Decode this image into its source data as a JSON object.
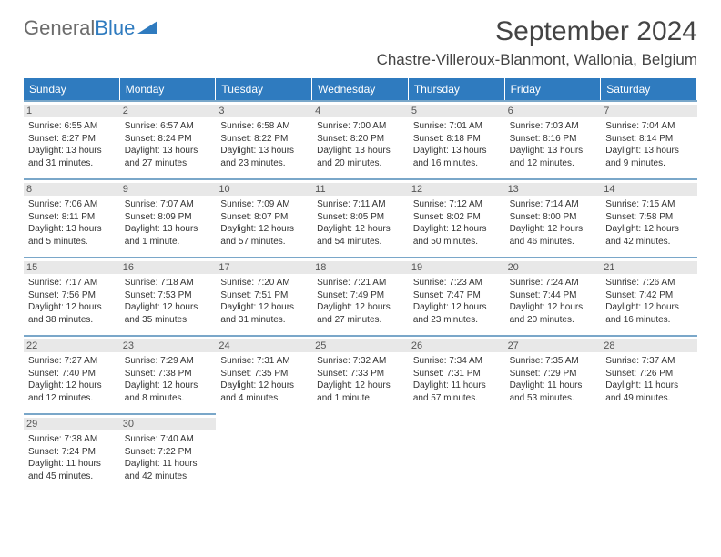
{
  "logo": {
    "text1": "General",
    "text2": "Blue"
  },
  "title": "September 2024",
  "location": "Chastre-Villeroux-Blanmont, Wallonia, Belgium",
  "colors": {
    "header_bg": "#2f7bbf",
    "header_text": "#ffffff",
    "cell_border": "#7aa7c9",
    "daynum_bg": "#e8e8e8",
    "text": "#333333",
    "logo_gray": "#6c6c6c",
    "logo_blue": "#2f7bbf"
  },
  "days_of_week": [
    "Sunday",
    "Monday",
    "Tuesday",
    "Wednesday",
    "Thursday",
    "Friday",
    "Saturday"
  ],
  "days": [
    {
      "n": "1",
      "sr": "Sunrise: 6:55 AM",
      "ss": "Sunset: 8:27 PM",
      "d1": "Daylight: 13 hours",
      "d2": "and 31 minutes."
    },
    {
      "n": "2",
      "sr": "Sunrise: 6:57 AM",
      "ss": "Sunset: 8:24 PM",
      "d1": "Daylight: 13 hours",
      "d2": "and 27 minutes."
    },
    {
      "n": "3",
      "sr": "Sunrise: 6:58 AM",
      "ss": "Sunset: 8:22 PM",
      "d1": "Daylight: 13 hours",
      "d2": "and 23 minutes."
    },
    {
      "n": "4",
      "sr": "Sunrise: 7:00 AM",
      "ss": "Sunset: 8:20 PM",
      "d1": "Daylight: 13 hours",
      "d2": "and 20 minutes."
    },
    {
      "n": "5",
      "sr": "Sunrise: 7:01 AM",
      "ss": "Sunset: 8:18 PM",
      "d1": "Daylight: 13 hours",
      "d2": "and 16 minutes."
    },
    {
      "n": "6",
      "sr": "Sunrise: 7:03 AM",
      "ss": "Sunset: 8:16 PM",
      "d1": "Daylight: 13 hours",
      "d2": "and 12 minutes."
    },
    {
      "n": "7",
      "sr": "Sunrise: 7:04 AM",
      "ss": "Sunset: 8:14 PM",
      "d1": "Daylight: 13 hours",
      "d2": "and 9 minutes."
    },
    {
      "n": "8",
      "sr": "Sunrise: 7:06 AM",
      "ss": "Sunset: 8:11 PM",
      "d1": "Daylight: 13 hours",
      "d2": "and 5 minutes."
    },
    {
      "n": "9",
      "sr": "Sunrise: 7:07 AM",
      "ss": "Sunset: 8:09 PM",
      "d1": "Daylight: 13 hours",
      "d2": "and 1 minute."
    },
    {
      "n": "10",
      "sr": "Sunrise: 7:09 AM",
      "ss": "Sunset: 8:07 PM",
      "d1": "Daylight: 12 hours",
      "d2": "and 57 minutes."
    },
    {
      "n": "11",
      "sr": "Sunrise: 7:11 AM",
      "ss": "Sunset: 8:05 PM",
      "d1": "Daylight: 12 hours",
      "d2": "and 54 minutes."
    },
    {
      "n": "12",
      "sr": "Sunrise: 7:12 AM",
      "ss": "Sunset: 8:02 PM",
      "d1": "Daylight: 12 hours",
      "d2": "and 50 minutes."
    },
    {
      "n": "13",
      "sr": "Sunrise: 7:14 AM",
      "ss": "Sunset: 8:00 PM",
      "d1": "Daylight: 12 hours",
      "d2": "and 46 minutes."
    },
    {
      "n": "14",
      "sr": "Sunrise: 7:15 AM",
      "ss": "Sunset: 7:58 PM",
      "d1": "Daylight: 12 hours",
      "d2": "and 42 minutes."
    },
    {
      "n": "15",
      "sr": "Sunrise: 7:17 AM",
      "ss": "Sunset: 7:56 PM",
      "d1": "Daylight: 12 hours",
      "d2": "and 38 minutes."
    },
    {
      "n": "16",
      "sr": "Sunrise: 7:18 AM",
      "ss": "Sunset: 7:53 PM",
      "d1": "Daylight: 12 hours",
      "d2": "and 35 minutes."
    },
    {
      "n": "17",
      "sr": "Sunrise: 7:20 AM",
      "ss": "Sunset: 7:51 PM",
      "d1": "Daylight: 12 hours",
      "d2": "and 31 minutes."
    },
    {
      "n": "18",
      "sr": "Sunrise: 7:21 AM",
      "ss": "Sunset: 7:49 PM",
      "d1": "Daylight: 12 hours",
      "d2": "and 27 minutes."
    },
    {
      "n": "19",
      "sr": "Sunrise: 7:23 AM",
      "ss": "Sunset: 7:47 PM",
      "d1": "Daylight: 12 hours",
      "d2": "and 23 minutes."
    },
    {
      "n": "20",
      "sr": "Sunrise: 7:24 AM",
      "ss": "Sunset: 7:44 PM",
      "d1": "Daylight: 12 hours",
      "d2": "and 20 minutes."
    },
    {
      "n": "21",
      "sr": "Sunrise: 7:26 AM",
      "ss": "Sunset: 7:42 PM",
      "d1": "Daylight: 12 hours",
      "d2": "and 16 minutes."
    },
    {
      "n": "22",
      "sr": "Sunrise: 7:27 AM",
      "ss": "Sunset: 7:40 PM",
      "d1": "Daylight: 12 hours",
      "d2": "and 12 minutes."
    },
    {
      "n": "23",
      "sr": "Sunrise: 7:29 AM",
      "ss": "Sunset: 7:38 PM",
      "d1": "Daylight: 12 hours",
      "d2": "and 8 minutes."
    },
    {
      "n": "24",
      "sr": "Sunrise: 7:31 AM",
      "ss": "Sunset: 7:35 PM",
      "d1": "Daylight: 12 hours",
      "d2": "and 4 minutes."
    },
    {
      "n": "25",
      "sr": "Sunrise: 7:32 AM",
      "ss": "Sunset: 7:33 PM",
      "d1": "Daylight: 12 hours",
      "d2": "and 1 minute."
    },
    {
      "n": "26",
      "sr": "Sunrise: 7:34 AM",
      "ss": "Sunset: 7:31 PM",
      "d1": "Daylight: 11 hours",
      "d2": "and 57 minutes."
    },
    {
      "n": "27",
      "sr": "Sunrise: 7:35 AM",
      "ss": "Sunset: 7:29 PM",
      "d1": "Daylight: 11 hours",
      "d2": "and 53 minutes."
    },
    {
      "n": "28",
      "sr": "Sunrise: 7:37 AM",
      "ss": "Sunset: 7:26 PM",
      "d1": "Daylight: 11 hours",
      "d2": "and 49 minutes."
    },
    {
      "n": "29",
      "sr": "Sunrise: 7:38 AM",
      "ss": "Sunset: 7:24 PM",
      "d1": "Daylight: 11 hours",
      "d2": "and 45 minutes."
    },
    {
      "n": "30",
      "sr": "Sunrise: 7:40 AM",
      "ss": "Sunset: 7:22 PM",
      "d1": "Daylight: 11 hours",
      "d2": "and 42 minutes."
    }
  ],
  "trailing_empty": 5
}
